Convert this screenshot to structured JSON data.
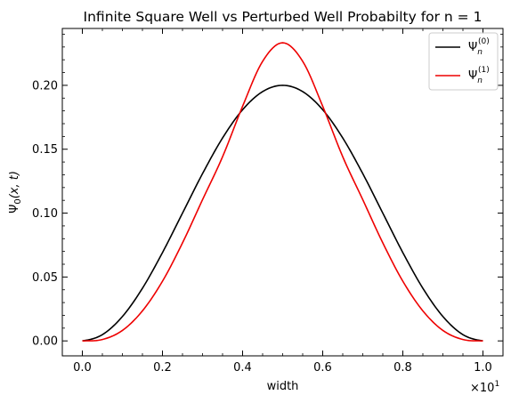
{
  "chart_data": {
    "type": "line",
    "title": "Infinite Square Well vs Perturbed Well Probabilty for n = 1",
    "xlabel": "width",
    "ylabel": "Ψ0(x, t)",
    "ylabel_parts": {
      "base": "Ψ",
      "sub": "0",
      "args": "(x, t)"
    },
    "x_multiplier": {
      "base": "×10",
      "exponent": "1"
    },
    "x_offset_label": "×10^1",
    "xlim": [
      -0.05,
      1.05
    ],
    "ylim": [
      -0.0117,
      0.2445
    ],
    "xticks": [
      0.0,
      0.2,
      0.4,
      0.6,
      0.8,
      1.0
    ],
    "xtick_labels": [
      "0.0",
      "0.2",
      "0.4",
      "0.6",
      "0.8",
      "1.0"
    ],
    "yticks": [
      0.0,
      0.05,
      0.1,
      0.15,
      0.2
    ],
    "ytick_labels": [
      "0.00",
      "0.05",
      "0.10",
      "0.15",
      "0.20"
    ],
    "grid": false,
    "legend_position": "top-right",
    "series": [
      {
        "name": "Ψn(0)",
        "name_parts": {
          "base": "Ψ",
          "sub": "n",
          "sup": "(0)"
        },
        "color": "#000000",
        "x": [
          0.0,
          0.05,
          0.1,
          0.15,
          0.2,
          0.25,
          0.3,
          0.35,
          0.4,
          0.45,
          0.5,
          0.55,
          0.6,
          0.65,
          0.7,
          0.75,
          0.8,
          0.85,
          0.9,
          0.95,
          1.0
        ],
        "y": [
          0.0,
          0.0049,
          0.0191,
          0.0412,
          0.0691,
          0.1,
          0.1309,
          0.1588,
          0.1809,
          0.1951,
          0.2,
          0.1951,
          0.1809,
          0.1588,
          0.1309,
          0.1,
          0.0691,
          0.0412,
          0.0191,
          0.0049,
          0.0
        ]
      },
      {
        "name": "Ψn(1)",
        "name_parts": {
          "base": "Ψ",
          "sub": "n",
          "sup": "(1)"
        },
        "color": "#ee0000",
        "x": [
          0.0,
          0.05,
          0.1,
          0.15,
          0.2,
          0.25,
          0.3,
          0.35,
          0.4,
          0.45,
          0.5,
          0.55,
          0.6,
          0.65,
          0.7,
          0.75,
          0.8,
          0.85,
          0.9,
          0.95,
          1.0
        ],
        "y": [
          0.0,
          0.0011,
          0.0082,
          0.0235,
          0.0467,
          0.0767,
          0.1105,
          0.1441,
          0.1836,
          0.2188,
          0.2333,
          0.2188,
          0.1836,
          0.1441,
          0.1105,
          0.0767,
          0.0467,
          0.0235,
          0.0082,
          0.0011,
          0.0
        ]
      }
    ]
  }
}
